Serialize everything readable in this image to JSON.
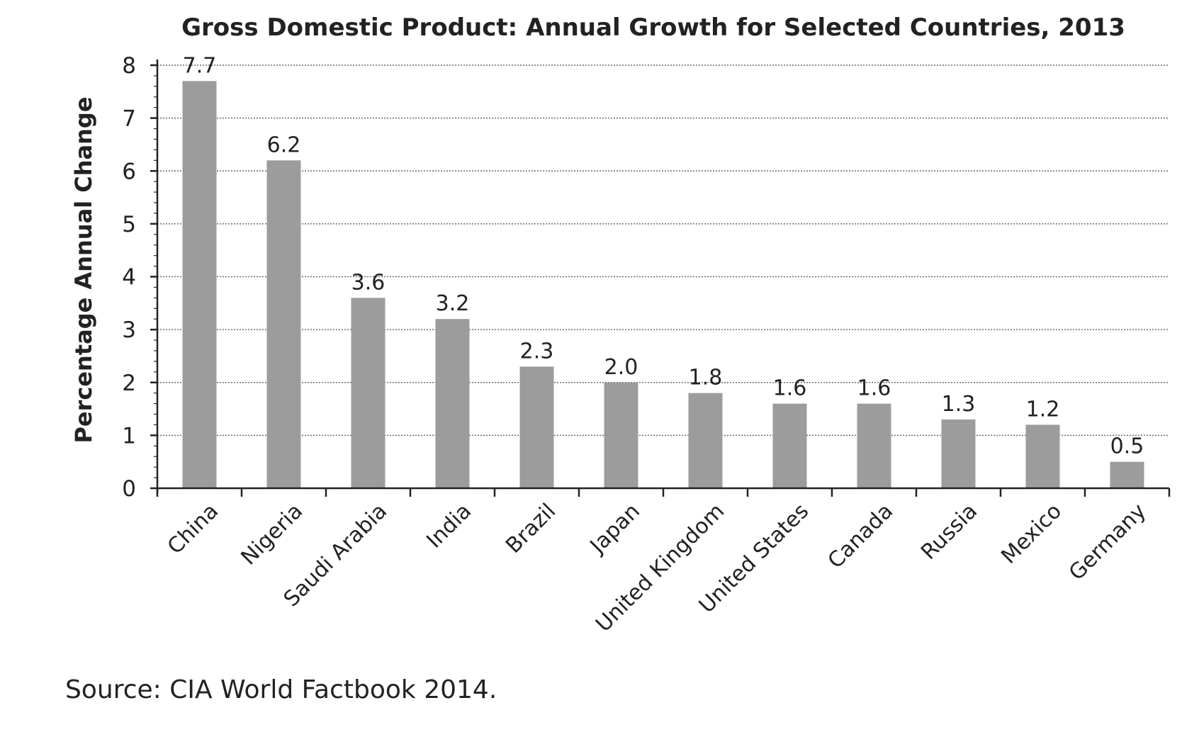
{
  "chart_data": {
    "type": "bar",
    "title": "Gross Domestic Product: Annual Growth for Selected Countries, 2013",
    "xlabel": "",
    "ylabel": "Percentage Annual Change",
    "ylim": [
      0,
      8
    ],
    "yticks": [
      "0",
      "1",
      "2",
      "3",
      "4",
      "5",
      "6",
      "7",
      "8"
    ],
    "grid": true,
    "categories": [
      "China",
      "Nigeria",
      "Saudi Arabia",
      "India",
      "Brazil",
      "Japan",
      "United Kingdom",
      "United States",
      "Canada",
      "Russia",
      "Mexico",
      "Germany"
    ],
    "values": [
      7.7,
      6.2,
      3.6,
      3.2,
      2.3,
      2.0,
      1.8,
      1.6,
      1.6,
      1.3,
      1.2,
      0.5
    ],
    "data_labels": [
      "7.7",
      "6.2",
      "3.6",
      "3.2",
      "2.3",
      "2.0",
      "1.8",
      "1.6",
      "1.6",
      "1.3",
      "1.2",
      "0.5"
    ],
    "bar_color": "#9c9c9c",
    "source": "Source: CIA World Factbook 2014."
  }
}
